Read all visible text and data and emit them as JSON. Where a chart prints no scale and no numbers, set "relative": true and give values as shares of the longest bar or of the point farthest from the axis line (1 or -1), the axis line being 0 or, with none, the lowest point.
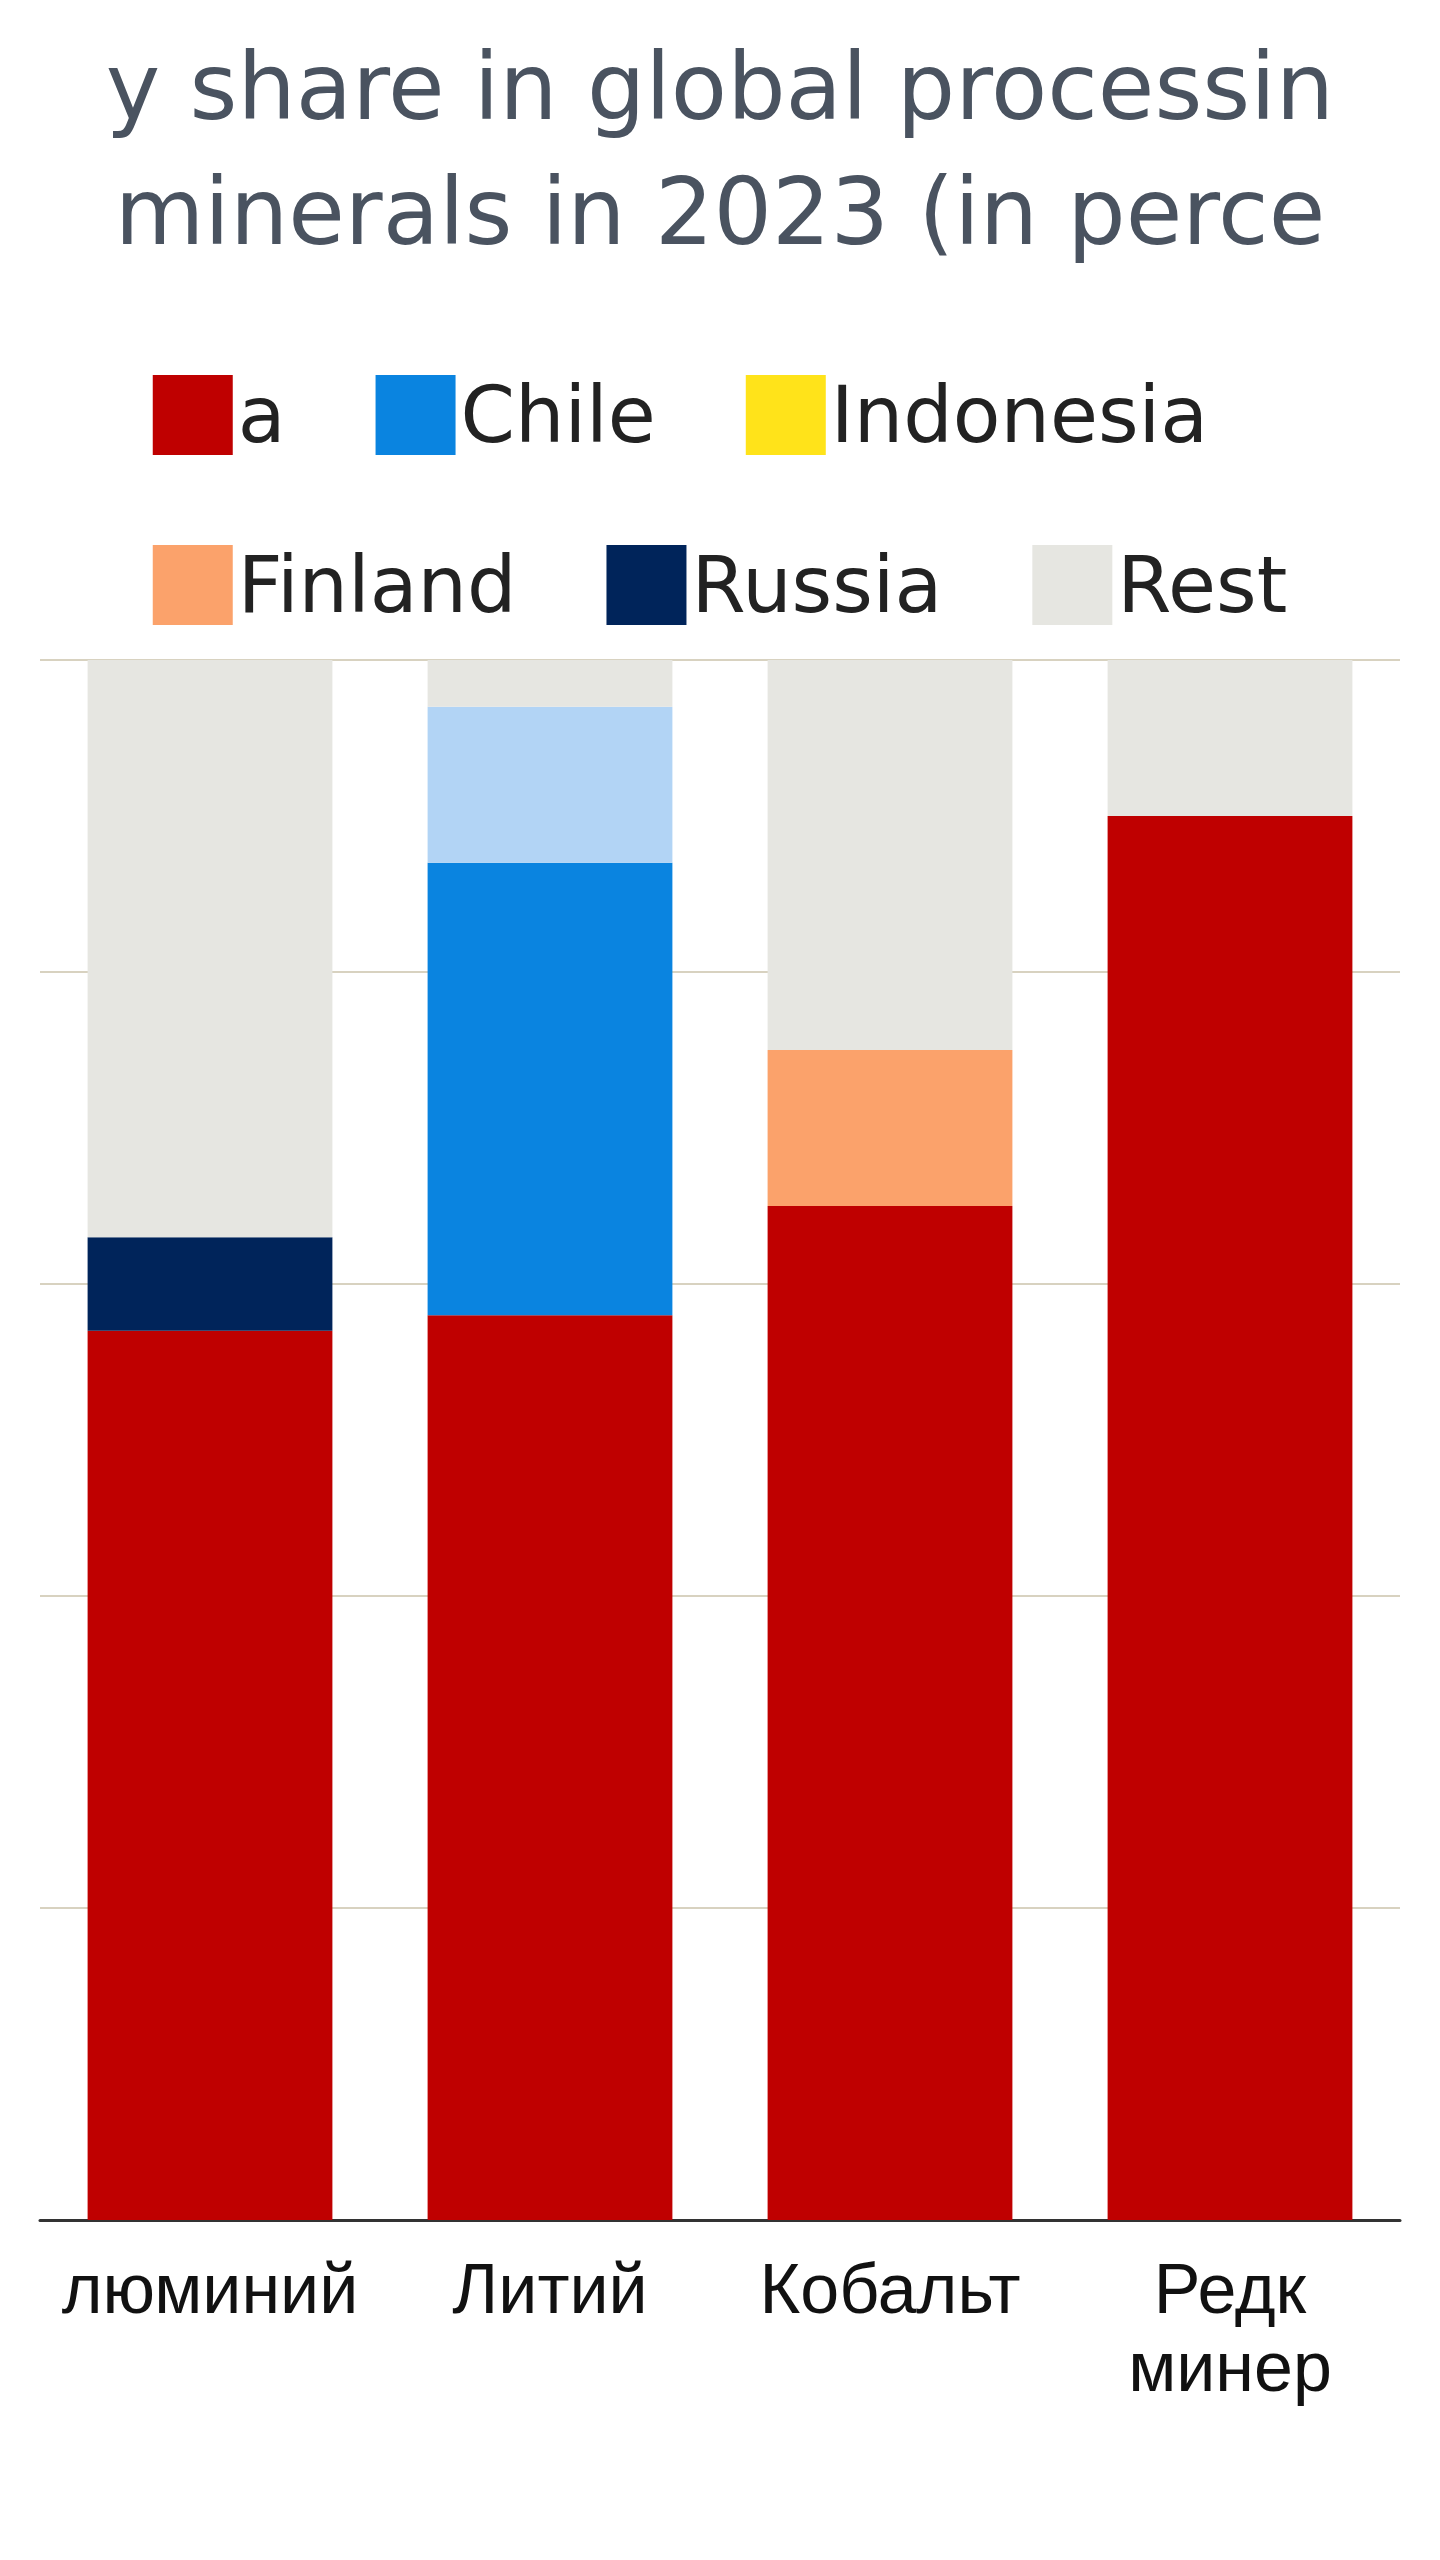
{
  "chart_data": {
    "type": "bar",
    "title": "y share in global processin\nminerals in 2023 (in perce",
    "categories": [
      "люминий",
      "Литий",
      "Кобальт",
      "Редк\nминер"
    ],
    "stacked": true,
    "relative": true,
    "grid": "y",
    "legend": "top",
    "series": [
      {
        "name": "a",
        "color": "#bf0000",
        "values": [
          0.57,
          0.58,
          0.65,
          0.9
        ]
      },
      {
        "name": "Chile",
        "color": "#0a84e0",
        "values": [
          null,
          0.29,
          null,
          null
        ]
      },
      {
        "name": "Indonesia",
        "color": "#ffe31a",
        "values": [
          null,
          null,
          null,
          null
        ]
      },
      {
        "name": "Finland",
        "color": "#fba26b",
        "values": [
          null,
          null,
          0.1,
          null
        ]
      },
      {
        "name": "Russia",
        "color": "#00245a",
        "values": [
          0.06,
          null,
          null,
          null
        ]
      },
      {
        "color": "#b2d4f5",
        "values": [
          null,
          0.1,
          null,
          null
        ]
      },
      {
        "name": "Rest",
        "color": "#e6e6e1",
        "values": [
          0.37,
          0.03,
          0.25,
          0.1
        ]
      }
    ]
  }
}
